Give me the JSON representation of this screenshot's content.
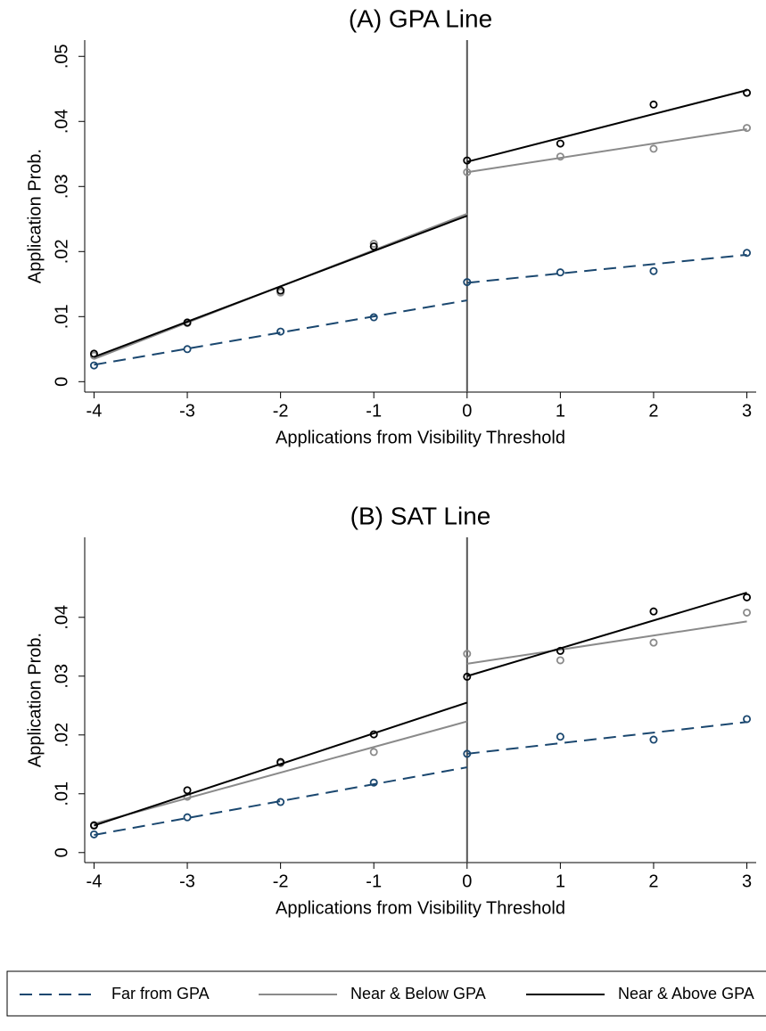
{
  "chart_data": [
    {
      "type": "scatter",
      "title": "(A) GPA Line",
      "x_label": "Applications from Visibility Threshold",
      "y_label": "Application Prob.",
      "x": [
        -4,
        -3,
        -2,
        -1,
        0,
        1,
        2,
        3
      ],
      "xlim": [
        -4.1,
        3.1
      ],
      "xticks": [
        -4,
        -3,
        -2,
        -1,
        0,
        1,
        2,
        3
      ],
      "ylim": [
        -0.0016,
        0.0525
      ],
      "yticks": [
        0,
        {
          "value": 0.01,
          "label": ".01"
        },
        {
          "value": 0.02,
          "label": ".02"
        },
        {
          "value": 0.03,
          "label": ".03"
        },
        {
          "value": 0.04,
          "label": ".04"
        },
        {
          "value": 0.05,
          "label": ".05"
        }
      ],
      "xline": 0,
      "fit_x": [
        [
          -4,
          0
        ],
        [
          0,
          3
        ]
      ],
      "legend": "bottom",
      "series": [
        {
          "name": "Far from GPA",
          "color": "#1a476f",
          "dashed": true,
          "values": [
            0.0025,
            0.005,
            0.0077,
            0.0099,
            0.0153,
            0.0168,
            0.017,
            0.0198
          ],
          "fit": [
            [
              0.0026,
              0.0125
            ],
            [
              0.0152,
              0.0195
            ]
          ]
        },
        {
          "name": "Near & Below GPA",
          "color": "#8a8a8a",
          "dashed": false,
          "values": [
            0.004,
            0.009,
            0.0137,
            0.0212,
            0.0322,
            0.0346,
            0.0358,
            0.039
          ],
          "fit": [
            [
              0.0035,
              0.0258
            ],
            [
              0.0322,
              0.0388
            ]
          ]
        },
        {
          "name": "Near & Above GPA",
          "color": "#000000",
          "dashed": false,
          "values": [
            0.0043,
            0.0091,
            0.014,
            0.0208,
            0.034,
            0.0366,
            0.0426,
            0.0444
          ],
          "fit": [
            [
              0.0038,
              0.0255
            ],
            [
              0.0338,
              0.0448
            ]
          ]
        }
      ]
    },
    {
      "type": "scatter",
      "title": "(B) SAT Line",
      "x_label": "Applications from Visibility Threshold",
      "y_label": "Application Prob.",
      "x": [
        -4,
        -3,
        -2,
        -1,
        0,
        1,
        2,
        3
      ],
      "xlim": [
        -4.1,
        3.1
      ],
      "xticks": [
        -4,
        -3,
        -2,
        -1,
        0,
        1,
        2,
        3
      ],
      "ylim": [
        -0.0017,
        0.0536
      ],
      "yticks": [
        0,
        {
          "value": 0.01,
          "label": ".01"
        },
        {
          "value": 0.02,
          "label": ".02"
        },
        {
          "value": 0.03,
          "label": ".03"
        },
        {
          "value": 0.04,
          "label": ".04"
        }
      ],
      "xline": 0,
      "fit_x": [
        [
          -4,
          0
        ],
        [
          0,
          3
        ]
      ],
      "series": [
        {
          "color": "#1a476f",
          "dashed": true,
          "values": [
            0.0031,
            0.006,
            0.0086,
            0.0119,
            0.0168,
            0.0197,
            0.0192,
            0.0227
          ],
          "fit": [
            [
              0.003,
              0.0145
            ],
            [
              0.0168,
              0.0222
            ]
          ]
        },
        {
          "color": "#8a8a8a",
          "dashed": false,
          "values": [
            0.0047,
            0.0095,
            0.0152,
            0.0171,
            0.0338,
            0.0327,
            0.0357,
            0.0408
          ],
          "fit": [
            [
              0.0049,
              0.0223
            ],
            [
              0.0321,
              0.0393
            ]
          ]
        },
        {
          "color": "#000000",
          "dashed": false,
          "values": [
            0.0046,
            0.0106,
            0.0154,
            0.0201,
            0.0299,
            0.0343,
            0.041,
            0.0434
          ],
          "fit": [
            [
              0.0046,
              0.0255
            ],
            [
              0.03,
              0.0442
            ]
          ]
        }
      ]
    }
  ]
}
